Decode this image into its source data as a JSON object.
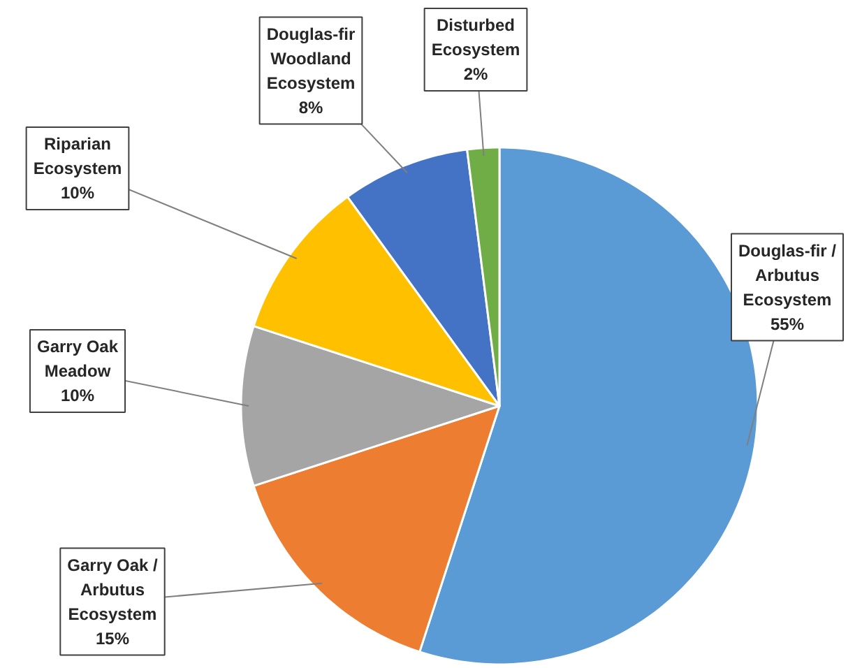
{
  "chart_data": {
    "type": "pie",
    "categories": [
      "Douglas-fir /\nArbutus\nEcosystem",
      "Garry Oak /\nArbutus\nEcosystem",
      "Garry Oak\nMeadow",
      "Riparian\nEcosystem",
      "Douglas-fir\nWoodland\nEcosystem",
      "Disturbed\nEcosystem"
    ],
    "values": [
      55,
      15,
      10,
      10,
      8,
      2
    ],
    "value_labels": [
      "55%",
      "15%",
      "10%",
      "10%",
      "8%",
      "2%"
    ],
    "colors": [
      "#5b9bd5",
      "#ed7d31",
      "#a5a5a5",
      "#ffc000",
      "#4472c4",
      "#70ad47"
    ],
    "legend": false
  }
}
